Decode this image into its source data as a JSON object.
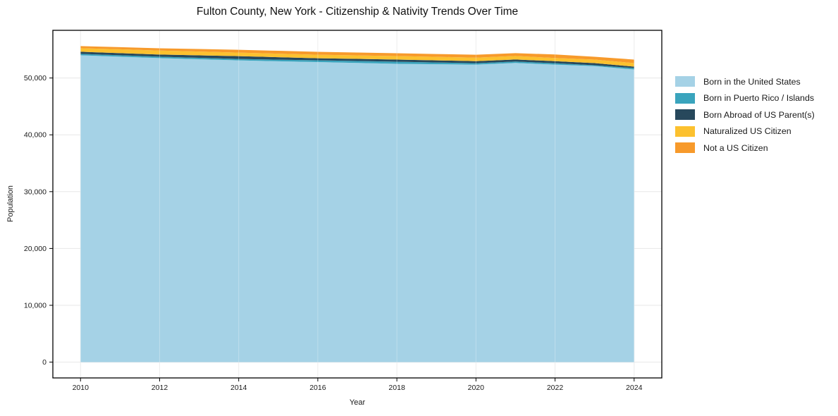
{
  "title": "Fulton County, New York - Citizenship & Nativity Trends Over Time",
  "chart_data": {
    "type": "area",
    "stacked": true,
    "title": "Fulton County, New York - Citizenship & Nativity Trends Over Time",
    "xlabel": "Year",
    "ylabel": "Population",
    "x": [
      2010,
      2011,
      2012,
      2013,
      2014,
      2015,
      2016,
      2017,
      2018,
      2019,
      2020,
      2021,
      2022,
      2023,
      2024
    ],
    "series": [
      {
        "name": "Born in the United States",
        "color": "#a5d2e6",
        "values": [
          54000,
          53750,
          53500,
          53300,
          53100,
          52950,
          52800,
          52650,
          52500,
          52420,
          52350,
          52650,
          52350,
          52100,
          51500
        ]
      },
      {
        "name": "Born in Puerto Rico / Islands",
        "color": "#3aa4bd",
        "values": [
          250,
          250,
          250,
          250,
          250,
          280,
          310,
          340,
          370,
          310,
          250,
          250,
          250,
          150,
          250
        ]
      },
      {
        "name": "Born Abroad of US Parent(s)",
        "color": "#27485c",
        "values": [
          370,
          375,
          380,
          440,
          500,
          435,
          370,
          370,
          370,
          370,
          370,
          350,
          370,
          370,
          250
        ]
      },
      {
        "name": "Naturalized US Citizen",
        "color": "#fcc12f",
        "values": [
          620,
          680,
          700,
          660,
          620,
          620,
          620,
          620,
          620,
          620,
          620,
          620,
          550,
          620,
          620
        ]
      },
      {
        "name": "Not a US Citizen",
        "color": "#f79a2b",
        "values": [
          370,
          375,
          400,
          450,
          500,
          500,
          500,
          500,
          500,
          500,
          500,
          500,
          620,
          500,
          620
        ]
      }
    ],
    "xticks": [
      2010,
      2012,
      2014,
      2016,
      2018,
      2020,
      2022,
      2024
    ],
    "xtick_labels": [
      "2010",
      "2012",
      "2014",
      "2016",
      "2018",
      "2020",
      "2022",
      "2024"
    ],
    "yticks": [
      0,
      10000,
      20000,
      30000,
      40000,
      50000
    ],
    "ytick_labels": [
      "0",
      "10,000",
      "20,000",
      "30,000",
      "40,000",
      "50,000"
    ],
    "ylim": [
      0,
      55610
    ],
    "grid": true,
    "legend_position": "right",
    "colors": {
      "grid": "#e7e7e7",
      "spine": "#000000",
      "background": "#ffffff"
    }
  }
}
